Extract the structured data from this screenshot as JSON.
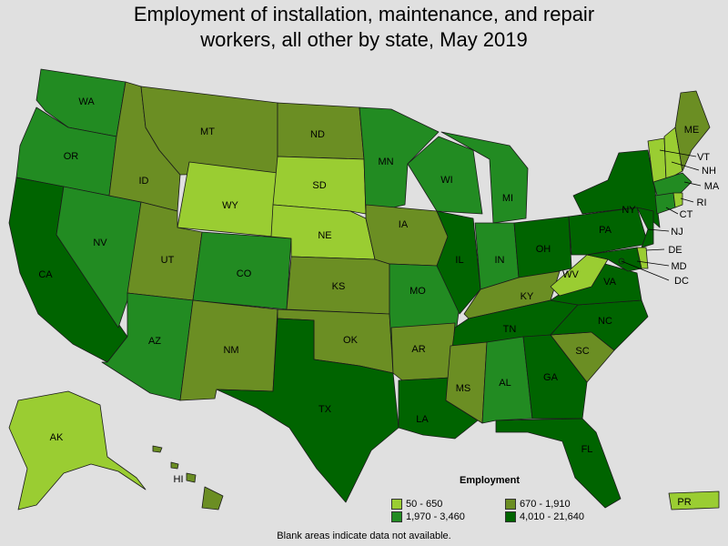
{
  "title": {
    "line1": "Employment of installation, maintenance, and repair",
    "line2": "workers, all other by state, May 2019"
  },
  "legend": {
    "title": "Employment",
    "bins": [
      {
        "label": "50 - 650",
        "color": "#9acd32"
      },
      {
        "label": "670 - 1,910",
        "color": "#6b8e23"
      },
      {
        "label": "1,970 - 3,460",
        "color": "#228b22"
      },
      {
        "label": "4,010 - 21,640",
        "color": "#006400"
      }
    ]
  },
  "footnote": "Blank areas indicate data not available.",
  "states": {
    "WA": 2,
    "OR": 2,
    "CA": 3,
    "NV": 2,
    "ID": 1,
    "MT": 1,
    "WY": 0,
    "UT": 1,
    "AZ": 2,
    "CO": 2,
    "NM": 1,
    "ND": 1,
    "SD": 0,
    "NE": 0,
    "KS": 1,
    "OK": 1,
    "TX": 3,
    "MN": 2,
    "IA": 1,
    "MO": 2,
    "AR": 1,
    "LA": 3,
    "WI": 2,
    "IL": 3,
    "MI": 2,
    "IN": 2,
    "OH": 3,
    "KY": 1,
    "TN": 3,
    "MS": 1,
    "AL": 2,
    "GA": 3,
    "FL": 3,
    "SC": 1,
    "NC": 3,
    "VA": 3,
    "WV": 0,
    "PA": 3,
    "NY": 3,
    "ME": 1,
    "VT": 0,
    "NH": 0,
    "MA": 2,
    "RI": 0,
    "CT": 2,
    "NJ": 3,
    "DE": 0,
    "MD": 3,
    "DC": 3,
    "AK": 0,
    "HI": 1,
    "PR": 0
  }
}
